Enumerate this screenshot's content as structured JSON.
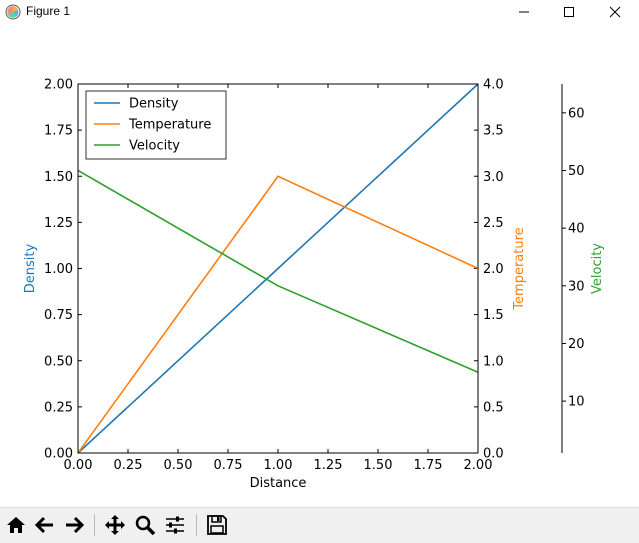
{
  "window": {
    "title": "Figure 1"
  },
  "toolbar": {
    "buttons": [
      "home-icon",
      "back-icon",
      "forward-icon",
      "pan-icon",
      "zoom-icon",
      "subplots-icon",
      "save-icon"
    ]
  },
  "chart_data": {
    "type": "line",
    "xlabel": "Distance",
    "x_ticks": [
      "0.00",
      "0.25",
      "0.50",
      "0.75",
      "1.00",
      "1.25",
      "1.50",
      "1.75",
      "2.00"
    ],
    "xlim": [
      0,
      2
    ],
    "legend_position": "top-left",
    "grid": false,
    "axes": [
      {
        "id": "density",
        "label": "Density",
        "side": "left",
        "color": "#1f77b4",
        "ylim": [
          0,
          2
        ],
        "ticks": [
          "0.00",
          "0.25",
          "0.50",
          "0.75",
          "1.00",
          "1.25",
          "1.50",
          "1.75",
          "2.00"
        ]
      },
      {
        "id": "temperature",
        "label": "Temperature",
        "side": "right",
        "color": "#ff7f0e",
        "ylim": [
          0,
          4
        ],
        "ticks": [
          "0.0",
          "0.5",
          "1.0",
          "1.5",
          "2.0",
          "2.5",
          "3.0",
          "3.5",
          "4.0"
        ]
      },
      {
        "id": "velocity",
        "label": "Velocity",
        "side": "right-offset",
        "color": "#2ca02c",
        "ylim": [
          1,
          65
        ],
        "ticks": [
          "10",
          "20",
          "30",
          "40",
          "50",
          "60"
        ]
      }
    ],
    "series": [
      {
        "name": "Density",
        "axis": "density",
        "color": "#1f77b4",
        "x": [
          0,
          1,
          2
        ],
        "y": [
          0,
          1,
          2
        ]
      },
      {
        "name": "Temperature",
        "axis": "temperature",
        "color": "#ff7f0e",
        "x": [
          0,
          1,
          2
        ],
        "y": [
          0,
          3,
          2
        ]
      },
      {
        "name": "Velocity",
        "axis": "velocity",
        "color": "#2ca02c",
        "x": [
          0,
          1,
          2
        ],
        "y": [
          50,
          30,
          15
        ]
      }
    ]
  }
}
